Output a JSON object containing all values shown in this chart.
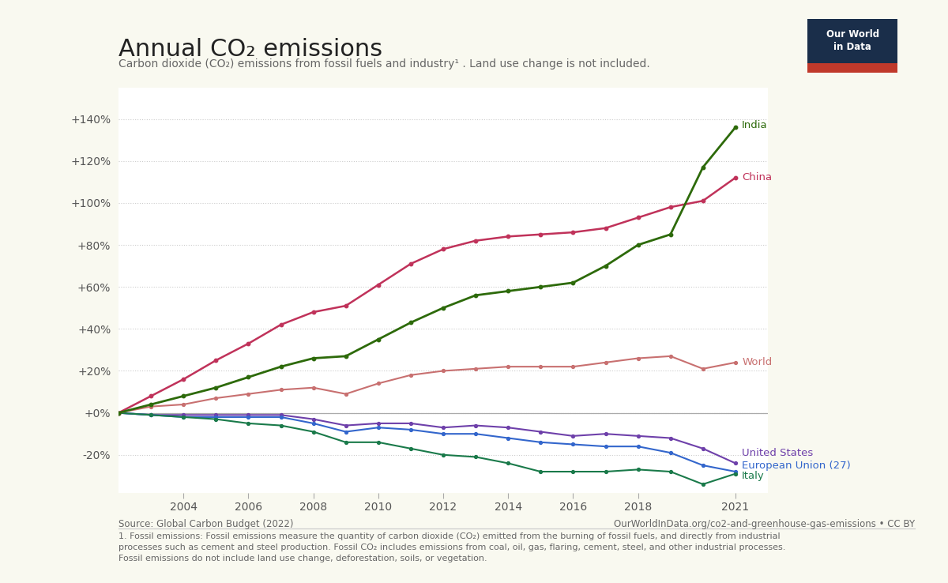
{
  "title": "Annual CO₂ emissions",
  "subtitle": "Carbon dioxide (CO₂) emissions from fossil fuels and industry¹ . Land use change is not included.",
  "source_left": "Source: Global Carbon Budget (2022)",
  "source_right": "OurWorldInData.org/co2-and-greenhouse-gas-emissions • CC BY",
  "footnote": "1. Fossil emissions: Fossil emissions measure the quantity of carbon dioxide (CO₂) emitted from the burning of fossil fuels, and directly from industrial\nprocesses such as cement and steel production. Fossil CO₂ includes emissions from coal, oil, gas, flaring, cement, steel, and other industrial processes.\nFossil emissions do not include land use change, deforestation, soils, or vegetation.",
  "years": [
    2002,
    2003,
    2004,
    2005,
    2006,
    2007,
    2008,
    2009,
    2010,
    2011,
    2012,
    2013,
    2014,
    2015,
    2016,
    2017,
    2018,
    2019,
    2020,
    2021
  ],
  "china": [
    0,
    8,
    16,
    25,
    33,
    42,
    48,
    51,
    61,
    71,
    78,
    82,
    84,
    85,
    86,
    88,
    93,
    98,
    101,
    112
  ],
  "india": [
    0,
    4,
    8,
    12,
    17,
    22,
    26,
    27,
    35,
    43,
    50,
    56,
    58,
    60,
    62,
    70,
    80,
    85,
    117,
    136
  ],
  "world": [
    0,
    3,
    4,
    7,
    9,
    11,
    12,
    9,
    14,
    18,
    20,
    21,
    22,
    22,
    22,
    24,
    26,
    27,
    21,
    24
  ],
  "us": [
    0,
    -1,
    -1,
    -1,
    -1,
    -1,
    -3,
    -6,
    -5,
    -5,
    -7,
    -6,
    -7,
    -9,
    -11,
    -10,
    -11,
    -12,
    -17,
    -24
  ],
  "eu": [
    0,
    -1,
    -2,
    -2,
    -2,
    -2,
    -5,
    -9,
    -7,
    -8,
    -10,
    -10,
    -12,
    -14,
    -15,
    -16,
    -16,
    -19,
    -25,
    -28
  ],
  "italy": [
    0,
    -1,
    -2,
    -3,
    -5,
    -6,
    -9,
    -14,
    -14,
    -17,
    -20,
    -21,
    -24,
    -28,
    -28,
    -28,
    -27,
    -28,
    -34,
    -29
  ],
  "colors": {
    "china": "#c0325a",
    "india": "#2d6a0a",
    "world": "#c87070",
    "us": "#6e40aa",
    "eu": "#3366cc",
    "italy": "#1a7a4a"
  },
  "yticks": [
    -20,
    0,
    20,
    40,
    60,
    80,
    100,
    120,
    140
  ],
  "ylim": [
    -38,
    155
  ],
  "xlim_left": 2002,
  "xlim_right": 2022,
  "xticks": [
    2004,
    2006,
    2008,
    2010,
    2012,
    2014,
    2016,
    2018,
    2021
  ],
  "bg_color": "#f9f9f0",
  "plot_bg": "#ffffff",
  "owid_dark": "#1a2e4a",
  "owid_red": "#c0392b",
  "grid_color": "#cccccc",
  "spine_color": "#cccccc"
}
